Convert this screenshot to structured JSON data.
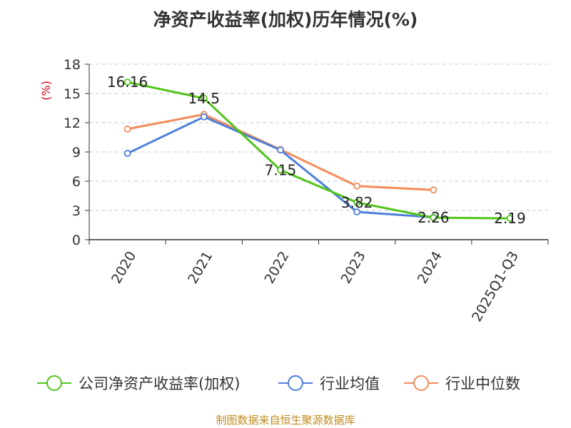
{
  "title": "净资产收益率(加权)历年情况(%)",
  "source": "制图数据来自恒生聚源数据库",
  "chart_data": {
    "type": "line",
    "title": "净资产收益率(加权)历年情况(%)",
    "ylabel": "(%)",
    "xlabel": "",
    "ylim": [
      0,
      18
    ],
    "yticks": [
      0,
      3,
      6,
      9,
      12,
      15,
      18
    ],
    "categories": [
      "2020",
      "2021",
      "2022",
      "2023",
      "2024",
      "2025Q1-Q3"
    ],
    "grid": true,
    "legend_position": "bottom",
    "series": [
      {
        "name": "公司净资产收益率(加权)",
        "color": "#52c41a",
        "values": [
          16.16,
          14.5,
          7.15,
          3.82,
          2.26,
          2.19
        ],
        "labels": [
          "16.16",
          "14.5",
          "7.15",
          "3.82",
          "2.26",
          "2.19"
        ]
      },
      {
        "name": "行业均值",
        "color": "#4f7fd9",
        "values": [
          8.85,
          12.6,
          9.2,
          2.85,
          2.3,
          null
        ]
      },
      {
        "name": "行业中位数",
        "color": "#f28c5a",
        "values": [
          11.35,
          12.85,
          9.25,
          5.5,
          5.1,
          null
        ]
      }
    ]
  }
}
